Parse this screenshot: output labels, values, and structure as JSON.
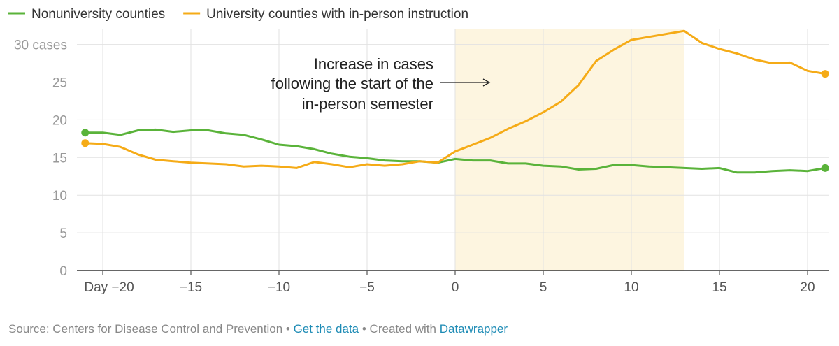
{
  "colors": {
    "nonuniversity": "#5ab33a",
    "university": "#f5ab17",
    "highlight": "#fdf5e0",
    "grid": "#e2e2e2",
    "axis": "#333333",
    "link": "#1d8bb5"
  },
  "chart_data": {
    "type": "line",
    "title": "",
    "xlabel": "",
    "ylabel": "",
    "xlim": [
      -21,
      21
    ],
    "ylim": [
      0,
      32
    ],
    "grid": true,
    "legend_position": "top-left",
    "x_ticks": [
      {
        "value": -20,
        "label": "Day −20"
      },
      {
        "value": -15,
        "label": "−15"
      },
      {
        "value": -10,
        "label": "−10"
      },
      {
        "value": -5,
        "label": "−5"
      },
      {
        "value": 0,
        "label": "0"
      },
      {
        "value": 5,
        "label": "5"
      },
      {
        "value": 10,
        "label": "10"
      },
      {
        "value": 15,
        "label": "15"
      },
      {
        "value": 20,
        "label": "20"
      }
    ],
    "y_ticks": [
      {
        "value": 0,
        "label": "0"
      },
      {
        "value": 5,
        "label": "5"
      },
      {
        "value": 10,
        "label": "10"
      },
      {
        "value": 15,
        "label": "15"
      },
      {
        "value": 20,
        "label": "20"
      },
      {
        "value": 25,
        "label": "25"
      },
      {
        "value": 30,
        "label": "30 cases"
      }
    ],
    "highlight_range": [
      0,
      13
    ],
    "x": [
      -21,
      -20,
      -19,
      -18,
      -17,
      -16,
      -15,
      -14,
      -13,
      -12,
      -11,
      -10,
      -9,
      -8,
      -7,
      -6,
      -5,
      -4,
      -3,
      -2,
      -1,
      0,
      1,
      2,
      3,
      4,
      5,
      6,
      7,
      8,
      9,
      10,
      11,
      12,
      13,
      14,
      15,
      16,
      17,
      18,
      19,
      20,
      21
    ],
    "series": [
      {
        "key": "nonuniversity",
        "name": "Nonuniversity counties",
        "values": [
          18.3,
          18.3,
          18.0,
          18.6,
          18.7,
          18.4,
          18.6,
          18.6,
          18.2,
          18.0,
          17.4,
          16.7,
          16.5,
          16.1,
          15.5,
          15.1,
          14.9,
          14.6,
          14.5,
          14.5,
          14.3,
          14.8,
          14.6,
          14.6,
          14.2,
          14.2,
          13.9,
          13.8,
          13.4,
          13.5,
          14.0,
          14.0,
          13.8,
          13.7,
          13.6,
          13.5,
          13.6,
          13.0,
          13.0,
          13.2,
          13.3,
          13.2,
          13.6
        ]
      },
      {
        "key": "university",
        "name": "University counties with in-person instruction",
        "values": [
          16.9,
          16.8,
          16.4,
          15.4,
          14.7,
          14.5,
          14.3,
          14.2,
          14.1,
          13.8,
          13.9,
          13.8,
          13.6,
          14.4,
          14.1,
          13.7,
          14.1,
          13.9,
          14.1,
          14.5,
          14.3,
          15.8,
          16.7,
          17.6,
          18.8,
          19.8,
          21.0,
          22.4,
          24.6,
          27.8,
          29.3,
          30.6,
          31.0,
          31.4,
          31.8,
          30.2,
          29.4,
          28.8,
          28.0,
          27.5,
          27.6,
          26.5,
          26.1
        ]
      }
    ],
    "annotation": {
      "lines": [
        "Increase in cases",
        "following the start of the",
        "in-person semester"
      ]
    }
  },
  "footer": {
    "source_text": "Source: Centers for Disease Control and Prevention",
    "separator_1": " • ",
    "get_data_label": "Get the data",
    "separator_2": " • ",
    "created_with_text": "Created with ",
    "datawrapper_label": "Datawrapper"
  }
}
